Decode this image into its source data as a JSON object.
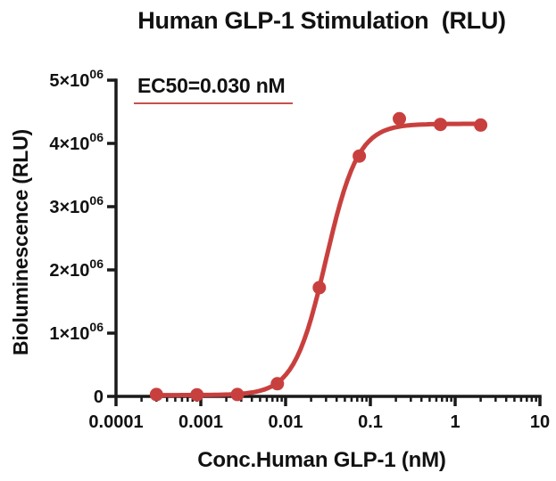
{
  "figure": {
    "title": "Human GLP-1 Stimulation  (RLU)",
    "annotation_text": "EC50=0.030 nM",
    "annotation_underline_color": "#c5524c",
    "axis_color": "#1a1a1a",
    "background": "#ffffff"
  },
  "chart_data": {
    "type": "scatter",
    "title": "Human GLP-1 Stimulation  (RLU)",
    "xlabel": "Conc.Human GLP-1 (nM)",
    "ylabel": "Bioluminescence (RLU)",
    "annotation": "EC50=0.030 nM",
    "x_scale": "log",
    "xlim": [
      0.0001,
      10
    ],
    "ylim": [
      0,
      5000000
    ],
    "grid": false,
    "legend": "none",
    "x_ticks": [
      {
        "value": 0.0001,
        "label": "0.0001"
      },
      {
        "value": 0.001,
        "label": "0.001"
      },
      {
        "value": 0.01,
        "label": "0.01"
      },
      {
        "value": 0.1,
        "label": "0.1"
      },
      {
        "value": 1,
        "label": "1"
      },
      {
        "value": 10,
        "label": "10"
      }
    ],
    "y_ticks": [
      {
        "value": 0,
        "main": "0",
        "sup": ""
      },
      {
        "value": 1000000,
        "main": "1×10",
        "sup": "06"
      },
      {
        "value": 2000000,
        "main": "2×10",
        "sup": "06"
      },
      {
        "value": 3000000,
        "main": "3×10",
        "sup": "06"
      },
      {
        "value": 4000000,
        "main": "4×10",
        "sup": "06"
      },
      {
        "value": 5000000,
        "main": "5×10",
        "sup": "06"
      }
    ],
    "series": [
      {
        "name": "Human GLP-1 stimulation",
        "color": "#c8403e",
        "marker_radius": 7.5,
        "line_width": 5,
        "x": [
          0.0003,
          0.0009,
          0.0027,
          0.008,
          0.025,
          0.074,
          0.22,
          0.67,
          2.0
        ],
        "y": [
          30000,
          25000,
          30000,
          200000,
          1720000,
          3800000,
          4390000,
          4300000,
          4290000
        ]
      }
    ],
    "fit": {
      "model": "4PL",
      "ec50_nM": 0.03,
      "hill": 2.3,
      "top": 4310000,
      "bottom": 20000,
      "draw_from": 0.0003,
      "draw_to": 2.0
    }
  }
}
